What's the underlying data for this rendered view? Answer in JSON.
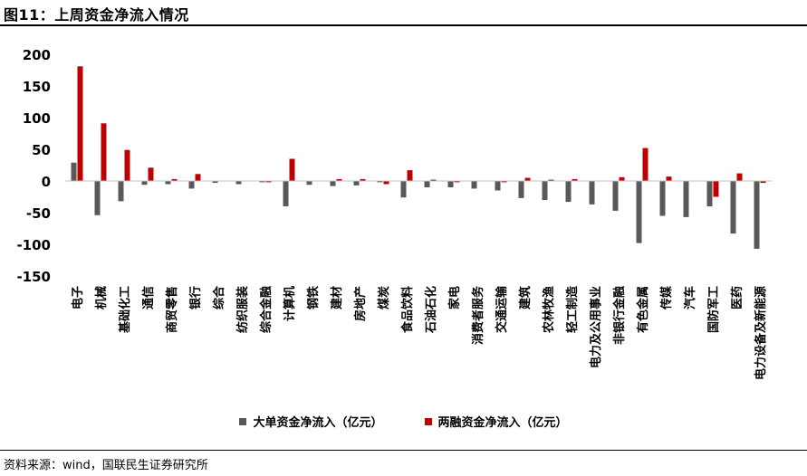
{
  "header": {
    "title": "图11：上周资金净流入情况"
  },
  "footer": {
    "source": "资料来源：wind，国联民生证券研究所"
  },
  "chart_data": {
    "type": "bar",
    "ylim": [
      -150,
      200
    ],
    "yticks": [
      200,
      150,
      100,
      50,
      0,
      -50,
      -100,
      -150
    ],
    "categories": [
      "电子",
      "机械",
      "基础化工",
      "通信",
      "商贸零售",
      "银行",
      "综合",
      "纺织服装",
      "综合金融",
      "计算机",
      "钢铁",
      "建材",
      "房地产",
      "煤炭",
      "食品饮料",
      "石油石化",
      "家电",
      "消费者服务",
      "交通运输",
      "建筑",
      "农林牧渔",
      "轻工制造",
      "电力及公用事业",
      "非银行金融",
      "有色金属",
      "传媒",
      "汽车",
      "国防军工",
      "医药",
      "电力设备及新能源"
    ],
    "series": [
      {
        "name": "大单资金净流入（亿元）",
        "color": "#595959",
        "values": [
          29,
          -54,
          -32,
          -6,
          -5,
          -12,
          -3,
          -5,
          -2,
          -40,
          -6,
          -8,
          -7,
          -2,
          -26,
          -10,
          -10,
          -12,
          -15,
          -27,
          -30,
          -33,
          -37,
          -47,
          -98,
          -55,
          -57,
          -40,
          -83,
          -107
        ]
      },
      {
        "name": "两融资金净流入（亿元）",
        "color": "#c00000",
        "values": [
          181,
          91,
          49,
          21,
          3,
          11,
          0,
          0,
          -2,
          35,
          0,
          3,
          3,
          -5,
          17,
          2,
          -2,
          0,
          -2,
          5,
          2,
          3,
          0,
          6,
          52,
          7,
          0,
          -25,
          12,
          -3
        ]
      }
    ],
    "grid": false,
    "legend_position": "bottom"
  }
}
